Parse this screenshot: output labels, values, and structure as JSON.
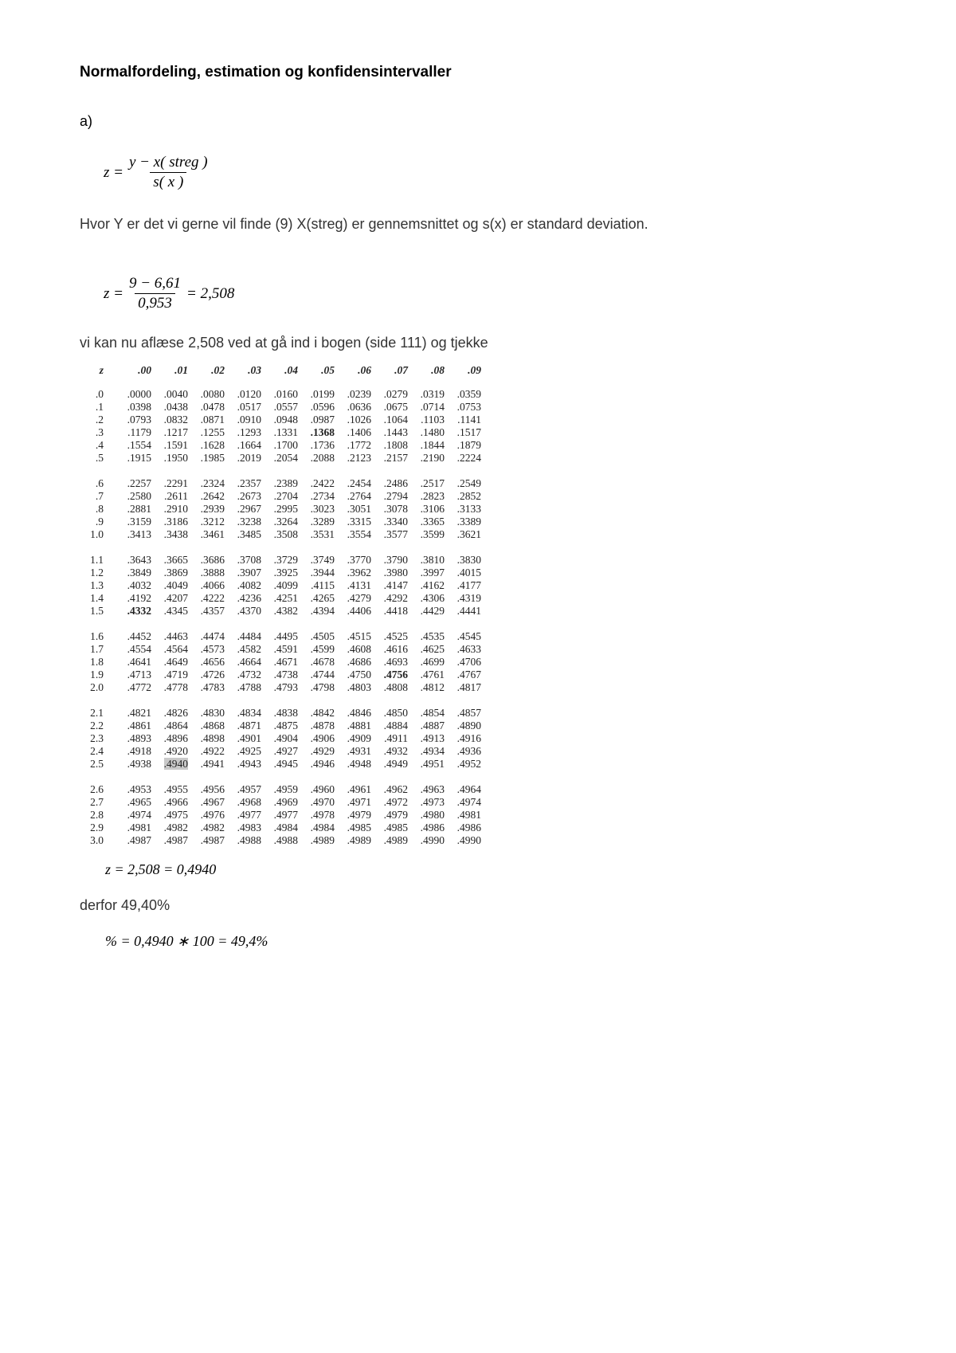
{
  "title": "Normalfordeling, estimation og konfidensintervaller",
  "part_label": "a)",
  "formula1": {
    "left": "z =",
    "num": "y − x( streg )",
    "den": "s( x )"
  },
  "explain": "Hvor Y er det vi gerne vil finde (9) X(streg) er gennemsnittet og s(x) er standard deviation.",
  "formula2": {
    "left": "z =",
    "num": "9 − 6,61",
    "den": "0,953",
    "right": "= 2,508"
  },
  "lookup_text": "vi kan nu aflæse 2,508 ved at gå ind i bogen (side 111) og tjekke",
  "table": {
    "z_hdr": "z",
    "col_hdrs": [
      ".00",
      ".01",
      ".02",
      ".03",
      ".04",
      ".05",
      ".06",
      ".07",
      ".08",
      ".09"
    ],
    "highlight": {
      "row": 25,
      "col": 1
    },
    "bold_cells": [
      {
        "row": 3,
        "col": 5
      },
      {
        "row": 15,
        "col": 0
      },
      {
        "row": 19,
        "col": 7
      }
    ],
    "blocks": [
      [
        {
          "z": ".0",
          "v": [
            ".0000",
            ".0040",
            ".0080",
            ".0120",
            ".0160",
            ".0199",
            ".0239",
            ".0279",
            ".0319",
            ".0359"
          ]
        },
        {
          "z": ".1",
          "v": [
            ".0398",
            ".0438",
            ".0478",
            ".0517",
            ".0557",
            ".0596",
            ".0636",
            ".0675",
            ".0714",
            ".0753"
          ]
        },
        {
          "z": ".2",
          "v": [
            ".0793",
            ".0832",
            ".0871",
            ".0910",
            ".0948",
            ".0987",
            ".1026",
            ".1064",
            ".1103",
            ".1141"
          ]
        },
        {
          "z": ".3",
          "v": [
            ".1179",
            ".1217",
            ".1255",
            ".1293",
            ".1331",
            ".1368",
            ".1406",
            ".1443",
            ".1480",
            ".1517"
          ]
        },
        {
          "z": ".4",
          "v": [
            ".1554",
            ".1591",
            ".1628",
            ".1664",
            ".1700",
            ".1736",
            ".1772",
            ".1808",
            ".1844",
            ".1879"
          ]
        },
        {
          "z": ".5",
          "v": [
            ".1915",
            ".1950",
            ".1985",
            ".2019",
            ".2054",
            ".2088",
            ".2123",
            ".2157",
            ".2190",
            ".2224"
          ]
        }
      ],
      [
        {
          "z": ".6",
          "v": [
            ".2257",
            ".2291",
            ".2324",
            ".2357",
            ".2389",
            ".2422",
            ".2454",
            ".2486",
            ".2517",
            ".2549"
          ]
        },
        {
          "z": ".7",
          "v": [
            ".2580",
            ".2611",
            ".2642",
            ".2673",
            ".2704",
            ".2734",
            ".2764",
            ".2794",
            ".2823",
            ".2852"
          ]
        },
        {
          "z": ".8",
          "v": [
            ".2881",
            ".2910",
            ".2939",
            ".2967",
            ".2995",
            ".3023",
            ".3051",
            ".3078",
            ".3106",
            ".3133"
          ]
        },
        {
          "z": ".9",
          "v": [
            ".3159",
            ".3186",
            ".3212",
            ".3238",
            ".3264",
            ".3289",
            ".3315",
            ".3340",
            ".3365",
            ".3389"
          ]
        },
        {
          "z": "1.0",
          "v": [
            ".3413",
            ".3438",
            ".3461",
            ".3485",
            ".3508",
            ".3531",
            ".3554",
            ".3577",
            ".3599",
            ".3621"
          ]
        }
      ],
      [
        {
          "z": "1.1",
          "v": [
            ".3643",
            ".3665",
            ".3686",
            ".3708",
            ".3729",
            ".3749",
            ".3770",
            ".3790",
            ".3810",
            ".3830"
          ]
        },
        {
          "z": "1.2",
          "v": [
            ".3849",
            ".3869",
            ".3888",
            ".3907",
            ".3925",
            ".3944",
            ".3962",
            ".3980",
            ".3997",
            ".4015"
          ]
        },
        {
          "z": "1.3",
          "v": [
            ".4032",
            ".4049",
            ".4066",
            ".4082",
            ".4099",
            ".4115",
            ".4131",
            ".4147",
            ".4162",
            ".4177"
          ]
        },
        {
          "z": "1.4",
          "v": [
            ".4192",
            ".4207",
            ".4222",
            ".4236",
            ".4251",
            ".4265",
            ".4279",
            ".4292",
            ".4306",
            ".4319"
          ]
        },
        {
          "z": "1.5",
          "v": [
            ".4332",
            ".4345",
            ".4357",
            ".4370",
            ".4382",
            ".4394",
            ".4406",
            ".4418",
            ".4429",
            ".4441"
          ]
        }
      ],
      [
        {
          "z": "1.6",
          "v": [
            ".4452",
            ".4463",
            ".4474",
            ".4484",
            ".4495",
            ".4505",
            ".4515",
            ".4525",
            ".4535",
            ".4545"
          ]
        },
        {
          "z": "1.7",
          "v": [
            ".4554",
            ".4564",
            ".4573",
            ".4582",
            ".4591",
            ".4599",
            ".4608",
            ".4616",
            ".4625",
            ".4633"
          ]
        },
        {
          "z": "1.8",
          "v": [
            ".4641",
            ".4649",
            ".4656",
            ".4664",
            ".4671",
            ".4678",
            ".4686",
            ".4693",
            ".4699",
            ".4706"
          ]
        },
        {
          "z": "1.9",
          "v": [
            ".4713",
            ".4719",
            ".4726",
            ".4732",
            ".4738",
            ".4744",
            ".4750",
            ".4756",
            ".4761",
            ".4767"
          ]
        },
        {
          "z": "2.0",
          "v": [
            ".4772",
            ".4778",
            ".4783",
            ".4788",
            ".4793",
            ".4798",
            ".4803",
            ".4808",
            ".4812",
            ".4817"
          ]
        }
      ],
      [
        {
          "z": "2.1",
          "v": [
            ".4821",
            ".4826",
            ".4830",
            ".4834",
            ".4838",
            ".4842",
            ".4846",
            ".4850",
            ".4854",
            ".4857"
          ]
        },
        {
          "z": "2.2",
          "v": [
            ".4861",
            ".4864",
            ".4868",
            ".4871",
            ".4875",
            ".4878",
            ".4881",
            ".4884",
            ".4887",
            ".4890"
          ]
        },
        {
          "z": "2.3",
          "v": [
            ".4893",
            ".4896",
            ".4898",
            ".4901",
            ".4904",
            ".4906",
            ".4909",
            ".4911",
            ".4913",
            ".4916"
          ]
        },
        {
          "z": "2.4",
          "v": [
            ".4918",
            ".4920",
            ".4922",
            ".4925",
            ".4927",
            ".4929",
            ".4931",
            ".4932",
            ".4934",
            ".4936"
          ]
        },
        {
          "z": "2.5",
          "v": [
            ".4938",
            ".4940",
            ".4941",
            ".4943",
            ".4945",
            ".4946",
            ".4948",
            ".4949",
            ".4951",
            ".4952"
          ]
        }
      ],
      [
        {
          "z": "2.6",
          "v": [
            ".4953",
            ".4955",
            ".4956",
            ".4957",
            ".4959",
            ".4960",
            ".4961",
            ".4962",
            ".4963",
            ".4964"
          ]
        },
        {
          "z": "2.7",
          "v": [
            ".4965",
            ".4966",
            ".4967",
            ".4968",
            ".4969",
            ".4970",
            ".4971",
            ".4972",
            ".4973",
            ".4974"
          ]
        },
        {
          "z": "2.8",
          "v": [
            ".4974",
            ".4975",
            ".4976",
            ".4977",
            ".4977",
            ".4978",
            ".4979",
            ".4979",
            ".4980",
            ".4981"
          ]
        },
        {
          "z": "2.9",
          "v": [
            ".4981",
            ".4982",
            ".4982",
            ".4983",
            ".4984",
            ".4984",
            ".4985",
            ".4985",
            ".4986",
            ".4986"
          ]
        },
        {
          "z": "3.0",
          "v": [
            ".4987",
            ".4987",
            ".4987",
            ".4988",
            ".4988",
            ".4989",
            ".4989",
            ".4989",
            ".4990",
            ".4990"
          ]
        }
      ]
    ]
  },
  "result1": "z = 2,508 = 0,4940",
  "derfor": "derfor 49,40%",
  "result2": "% = 0,4940 ∗ 100 = 49,4%"
}
